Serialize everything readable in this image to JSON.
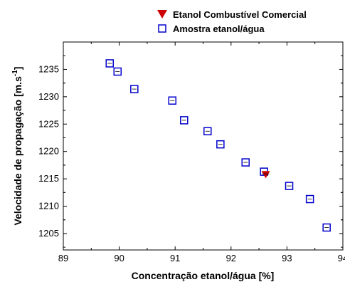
{
  "chart_data": {
    "type": "scatter",
    "xlabel": "Concentração etanol/água [%]",
    "ylabel": "Velocidade de propagação [m.s",
    "ylabel_sup": "-1",
    "ylabel_end": "]",
    "xlim": [
      89,
      94
    ],
    "ylim": [
      1202,
      1240
    ],
    "xticks": [
      89,
      90,
      91,
      92,
      93,
      94
    ],
    "yticks": [
      1205,
      1210,
      1215,
      1220,
      1225,
      1230,
      1235
    ],
    "grid": false,
    "legend_position": "top",
    "series": [
      {
        "name": "Etanol Combustível Comercial",
        "marker": "triangle-down",
        "color": "#cc0000",
        "points": [
          [
            92.62,
            1215.9
          ]
        ]
      },
      {
        "name": "Amostra etanol/água",
        "marker": "square-open",
        "color": "#0000cc",
        "points": [
          [
            89.83,
            1236.1
          ],
          [
            89.97,
            1234.6
          ],
          [
            90.27,
            1231.4
          ],
          [
            90.95,
            1229.3
          ],
          [
            91.16,
            1225.7
          ],
          [
            91.58,
            1223.7
          ],
          [
            91.81,
            1221.3
          ],
          [
            92.26,
            1218.0
          ],
          [
            92.59,
            1216.3
          ],
          [
            93.04,
            1213.7
          ],
          [
            93.41,
            1211.3
          ],
          [
            93.71,
            1206.1
          ]
        ]
      }
    ]
  }
}
